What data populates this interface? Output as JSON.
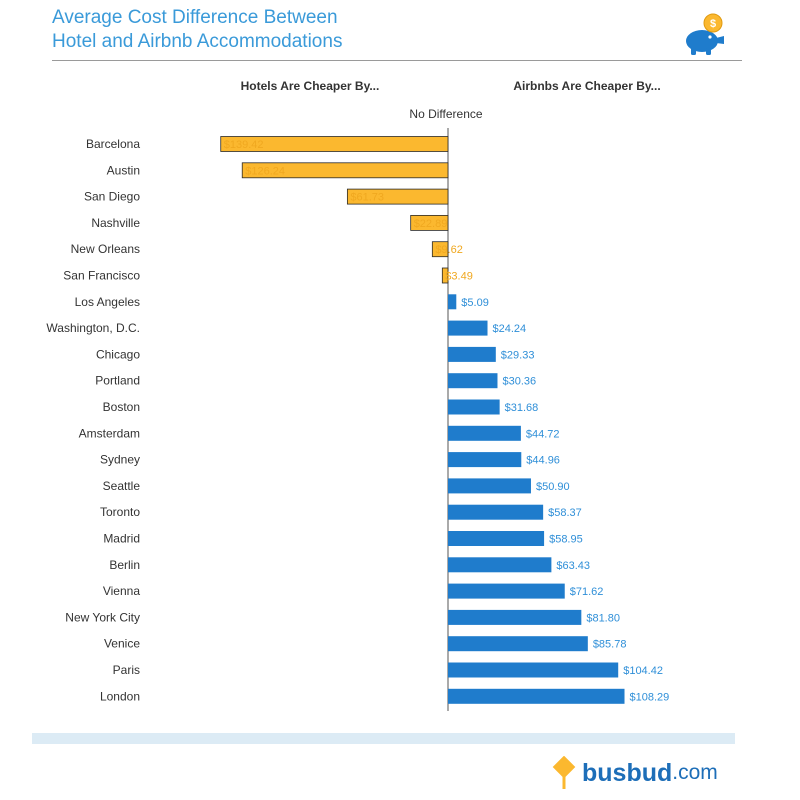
{
  "header": {
    "title_line1": "Average Cost Difference Between",
    "title_line2": "Hotel and Airbnb Accommodations",
    "icon": "piggy-bank-coin-icon"
  },
  "chart_data": {
    "type": "bar",
    "orientation": "horizontal",
    "left_heading": "Hotels Are Cheaper By...",
    "right_heading": "Airbnbs Are Cheaper By...",
    "center_label": "No Difference",
    "categories": [
      "Barcelona",
      "Austin",
      "San Diego",
      "Nashville",
      "New Orleans",
      "San Francisco",
      "Los Angeles",
      "Washington, D.C.",
      "Chicago",
      "Portland",
      "Boston",
      "Amsterdam",
      "Sydney",
      "Seattle",
      "Toronto",
      "Madrid",
      "Berlin",
      "Vienna",
      "New York City",
      "Venice",
      "Paris",
      "London"
    ],
    "series": [
      {
        "name": "Hotels Are Cheaper By...",
        "color": "#fbb82f",
        "values": [
          139.42,
          126.24,
          61.73,
          22.89,
          9.62,
          3.49,
          null,
          null,
          null,
          null,
          null,
          null,
          null,
          null,
          null,
          null,
          null,
          null,
          null,
          null,
          null,
          null
        ]
      },
      {
        "name": "Airbnbs Are Cheaper By...",
        "color": "#1f7ccc",
        "values": [
          null,
          null,
          null,
          null,
          null,
          null,
          5.09,
          24.24,
          29.33,
          30.36,
          31.68,
          44.72,
          44.96,
          50.9,
          58.37,
          58.95,
          63.43,
          71.62,
          81.8,
          85.78,
          104.42,
          108.29
        ]
      }
    ],
    "data_labels": [
      "$139.42",
      "$126.24",
      "$61.73",
      "$22.89",
      "$9.62",
      "$3.49",
      "$5.09",
      "$24.24",
      "$29.33",
      "$30.36",
      "$31.68",
      "$44.72",
      "$44.96",
      "$50.90",
      "$58.37",
      "$58.95",
      "$63.43",
      "$71.62",
      "$81.80",
      "$85.78",
      "$104.42",
      "$108.29"
    ],
    "grid": false,
    "legend": "none"
  },
  "footer": {
    "brand_name": "busbud",
    "brand_suffix": ".com",
    "icon": "busbud-logo-icon"
  },
  "colors": {
    "title": "#3a9ad9",
    "hotel_bar": "#fbb82f",
    "hotel_label": "#f0a820",
    "airbnb_bar": "#1f7ccc",
    "airbnb_label": "#2f8fd8",
    "brand": "#1d6eb8"
  }
}
